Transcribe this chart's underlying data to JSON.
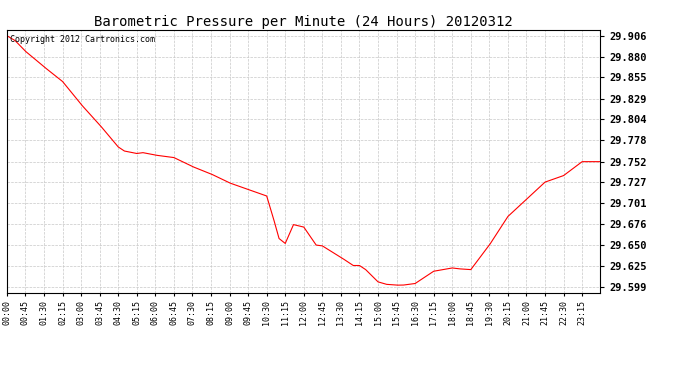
{
  "title": "Barometric Pressure per Minute (24 Hours) 20120312",
  "copyright_text": "Copyright 2012 Cartronics.com",
  "line_color": "#ff0000",
  "background_color": "#ffffff",
  "plot_background_color": "#ffffff",
  "grid_color": "#c8c8c8",
  "yticks": [
    29.599,
    29.625,
    29.65,
    29.676,
    29.701,
    29.727,
    29.752,
    29.778,
    29.804,
    29.829,
    29.855,
    29.88,
    29.906
  ],
  "ylim": [
    29.592,
    29.913
  ],
  "xtick_labels": [
    "00:00",
    "00:45",
    "01:30",
    "02:15",
    "03:00",
    "03:45",
    "04:30",
    "05:15",
    "06:00",
    "06:45",
    "07:30",
    "08:15",
    "09:00",
    "09:45",
    "10:30",
    "11:15",
    "12:00",
    "12:45",
    "13:30",
    "14:15",
    "15:00",
    "15:45",
    "16:30",
    "17:15",
    "18:00",
    "18:45",
    "19:30",
    "20:15",
    "21:00",
    "21:45",
    "22:30",
    "23:15"
  ],
  "pts_t": [
    0,
    20,
    45,
    90,
    135,
    180,
    225,
    270,
    285,
    315,
    330,
    360,
    405,
    450,
    495,
    540,
    585,
    630,
    645,
    660,
    675,
    695,
    720,
    750,
    765,
    810,
    840,
    855,
    870,
    900,
    920,
    945,
    960,
    990,
    1035,
    1080,
    1095,
    1125,
    1170,
    1215,
    1260,
    1305,
    1350,
    1395,
    1439
  ],
  "pts_v": [
    29.906,
    29.9,
    29.887,
    29.868,
    29.85,
    29.822,
    29.797,
    29.77,
    29.765,
    29.762,
    29.763,
    29.76,
    29.757,
    29.746,
    29.737,
    29.726,
    29.718,
    29.71,
    29.685,
    29.658,
    29.652,
    29.675,
    29.672,
    29.65,
    29.649,
    29.635,
    29.625,
    29.625,
    29.62,
    29.605,
    29.602,
    29.601,
    29.601,
    29.603,
    29.618,
    29.622,
    29.621,
    29.62,
    29.65,
    29.685,
    29.706,
    29.727,
    29.735,
    29.752,
    29.752
  ],
  "title_fontsize": 10,
  "copyright_fontsize": 6,
  "ytick_fontsize": 7.5,
  "xtick_fontsize": 6
}
